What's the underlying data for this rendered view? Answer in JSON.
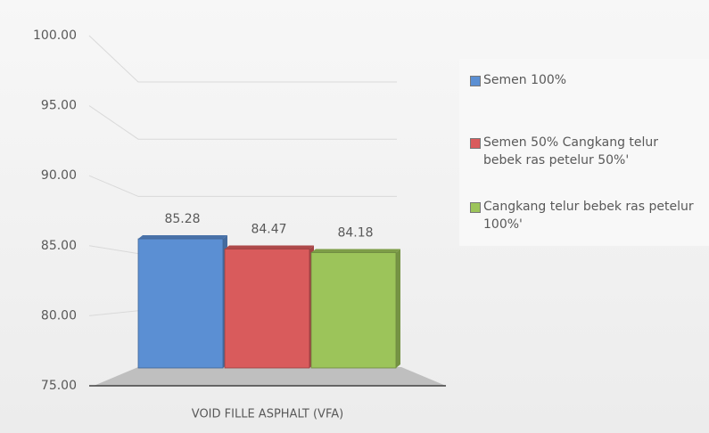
{
  "chart_data": {
    "type": "bar3d",
    "categories": [
      "VOID FILLE ASPHALT (VFA)"
    ],
    "series": [
      {
        "name": "Semen 100%",
        "color": "#5b8fd3",
        "values": [
          85.28
        ]
      },
      {
        "name": "Semen 50% Cangkang telur bebek ras petelur 50%'",
        "color": "#d95b5c",
        "values": [
          84.47
        ]
      },
      {
        "name": "Cangkang telur bebek ras petelur 100%'",
        "color": "#9cc45a",
        "values": [
          84.18
        ]
      }
    ],
    "ylim": [
      75,
      100
    ],
    "yticks": [
      {
        "value": 75,
        "label": "75.00"
      },
      {
        "value": 80,
        "label": "80.00"
      },
      {
        "value": 85,
        "label": "85.00"
      },
      {
        "value": 90,
        "label": "90.00"
      },
      {
        "value": 95,
        "label": "95.00"
      },
      {
        "value": 100,
        "label": "100.00"
      }
    ],
    "grid": true,
    "legend": "right"
  }
}
